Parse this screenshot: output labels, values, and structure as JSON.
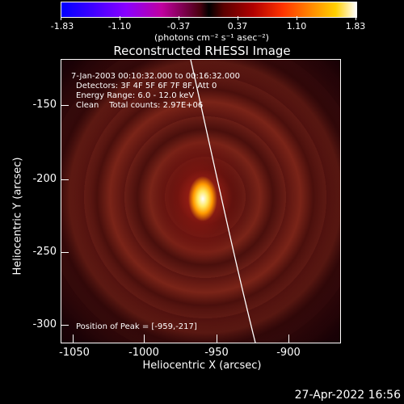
{
  "colorbar": {
    "tick_labels": [
      "-1.83",
      "-1.10",
      "-0.37",
      "0.37",
      "1.10",
      "1.83"
    ],
    "units": "(photons cm⁻² s⁻¹ asec⁻²)"
  },
  "title": "Reconstructed RHESSI Image",
  "info": {
    "time_range": "7-Jan-2003 00:10:32.000 to 00:16:32.000",
    "detectors": "Detectors: 3F 4F 5F 6F 7F 8F, Att 0",
    "energy": "Energy Range: 6.0 - 12.0 keV",
    "clean": "Clean    Total counts: 2.97E+06",
    "peak": "Position of Peak = [-959,-217]"
  },
  "axes": {
    "x_title": "Heliocentric X (arcsec)",
    "y_title": "Heliocentric Y (arcsec)",
    "x_ticks": [
      "-1050",
      "-1000",
      "-950",
      "-900"
    ],
    "y_ticks": [
      "-150",
      "-200",
      "-250",
      "-300"
    ]
  },
  "timestamp": "27-Apr-2022 16:56",
  "colors": {
    "background": "#000000",
    "foreground": "#ffffff",
    "peak": "#ffffff"
  }
}
